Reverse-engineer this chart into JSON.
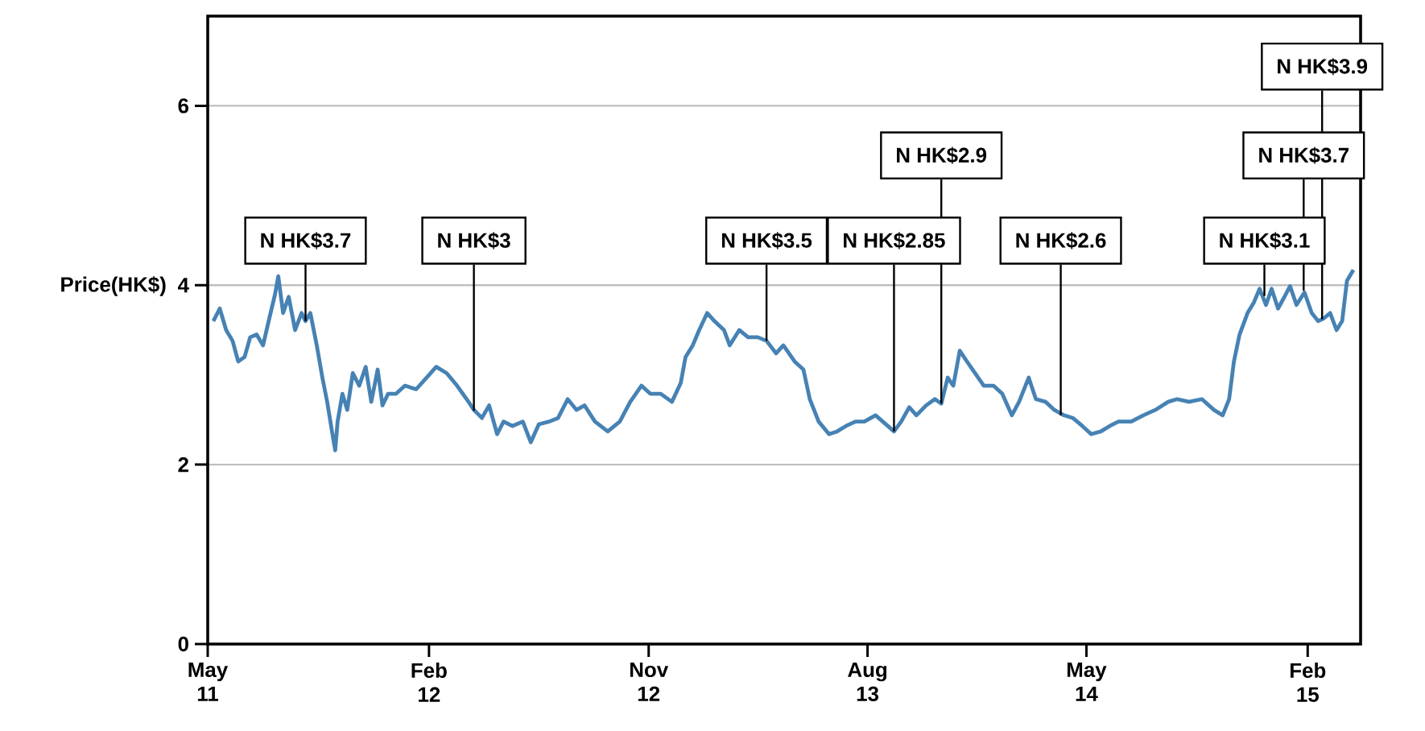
{
  "chart_data": {
    "type": "line",
    "ylabel": "Price(HK$)",
    "color": "#4682b4",
    "xlim": [
      "2011-05-01",
      "2015-04-08"
    ],
    "xticks": [
      {
        "value": "2011-05-01",
        "label": "May 11"
      },
      {
        "value": "2012-02-01",
        "label": "Feb 12"
      },
      {
        "value": "2012-11-01",
        "label": "Nov 12"
      },
      {
        "value": "2013-08-01",
        "label": "Aug 13"
      },
      {
        "value": "2014-05-01",
        "label": "May 14"
      },
      {
        "value": "2015-02-01",
        "label": "Feb 15"
      }
    ],
    "ylim": [
      0,
      7
    ],
    "yticks": [
      0,
      2,
      4,
      6
    ],
    "grid": "y",
    "x": [
      "2011-05-08",
      "2011-05-16",
      "2011-05-24",
      "2011-06-01",
      "2011-06-08",
      "2011-06-16",
      "2011-06-23",
      "2011-07-01",
      "2011-07-09",
      "2011-07-16",
      "2011-07-24",
      "2011-07-28",
      "2011-08-03",
      "2011-08-10",
      "2011-08-18",
      "2011-08-26",
      "2011-08-31",
      "2011-09-06",
      "2011-09-14",
      "2011-09-21",
      "2011-09-27",
      "2011-10-03",
      "2011-10-07",
      "2011-10-10",
      "2011-10-16",
      "2011-10-22",
      "2011-10-29",
      "2011-11-06",
      "2011-11-14",
      "2011-11-21",
      "2011-11-29",
      "2011-12-05",
      "2011-12-12",
      "2011-12-22",
      "2012-01-02",
      "2012-01-16",
      "2012-01-29",
      "2012-02-10",
      "2012-02-23",
      "2012-03-07",
      "2012-03-19",
      "2012-03-28",
      "2012-04-07",
      "2012-04-16",
      "2012-04-26",
      "2012-05-04",
      "2012-05-15",
      "2012-05-28",
      "2012-06-07",
      "2012-06-17",
      "2012-06-30",
      "2012-07-11",
      "2012-07-23",
      "2012-08-03",
      "2012-08-13",
      "2012-08-26",
      "2012-09-11",
      "2012-09-26",
      "2012-10-09",
      "2012-10-23",
      "2012-11-03",
      "2012-11-16",
      "2012-11-30",
      "2012-12-11",
      "2012-12-17",
      "2012-12-26",
      "2013-01-03",
      "2013-01-13",
      "2013-01-22",
      "2013-02-03",
      "2013-02-10",
      "2013-02-22",
      "2013-03-05",
      "2013-03-17",
      "2013-03-28",
      "2013-04-09",
      "2013-04-18",
      "2013-05-02",
      "2013-05-13",
      "2013-05-21",
      "2013-06-01",
      "2013-06-14",
      "2013-06-24",
      "2013-07-05",
      "2013-07-17",
      "2013-07-28",
      "2013-08-11",
      "2013-08-20",
      "2013-09-03",
      "2013-09-12",
      "2013-09-22",
      "2013-10-01",
      "2013-10-13",
      "2013-10-24",
      "2013-11-01",
      "2013-11-09",
      "2013-11-16",
      "2013-11-24",
      "2013-12-03",
      "2013-12-13",
      "2013-12-24",
      "2014-01-05",
      "2014-01-16",
      "2014-01-28",
      "2014-02-06",
      "2014-02-18",
      "2014-02-27",
      "2014-03-11",
      "2014-03-22",
      "2014-04-03",
      "2014-04-14",
      "2014-04-26",
      "2014-05-07",
      "2014-05-19",
      "2014-05-30",
      "2014-06-10",
      "2014-06-26",
      "2014-07-11",
      "2014-07-26",
      "2014-08-11",
      "2014-08-22",
      "2014-09-06",
      "2014-09-22",
      "2014-10-07",
      "2014-10-18",
      "2014-10-26",
      "2014-11-01",
      "2014-11-08",
      "2014-11-18",
      "2014-11-26",
      "2014-12-03",
      "2014-12-11",
      "2014-12-18",
      "2014-12-26",
      "2015-01-03",
      "2015-01-10",
      "2015-01-18",
      "2015-01-28",
      "2015-02-06",
      "2015-02-14",
      "2015-02-21",
      "2015-03-01",
      "2015-03-09",
      "2015-03-16",
      "2015-03-22",
      "2015-03-30"
    ],
    "values": [
      3.6,
      3.74,
      3.5,
      3.38,
      3.15,
      3.2,
      3.42,
      3.45,
      3.33,
      3.6,
      3.9,
      4.1,
      3.69,
      3.87,
      3.5,
      3.69,
      3.6,
      3.69,
      3.33,
      2.97,
      2.7,
      2.37,
      2.16,
      2.48,
      2.79,
      2.61,
      3.02,
      2.88,
      3.09,
      2.7,
      3.06,
      2.66,
      2.79,
      2.79,
      2.88,
      2.84,
      2.97,
      3.09,
      3.02,
      2.88,
      2.73,
      2.61,
      2.52,
      2.66,
      2.34,
      2.48,
      2.43,
      2.48,
      2.25,
      2.45,
      2.48,
      2.52,
      2.73,
      2.61,
      2.66,
      2.48,
      2.37,
      2.48,
      2.7,
      2.88,
      2.79,
      2.79,
      2.7,
      2.91,
      3.2,
      3.33,
      3.5,
      3.69,
      3.6,
      3.5,
      3.33,
      3.5,
      3.42,
      3.42,
      3.38,
      3.24,
      3.33,
      3.15,
      3.06,
      2.73,
      2.48,
      2.34,
      2.37,
      2.43,
      2.48,
      2.48,
      2.55,
      2.48,
      2.37,
      2.48,
      2.64,
      2.55,
      2.66,
      2.73,
      2.68,
      2.97,
      2.88,
      3.27,
      3.15,
      3.02,
      2.88,
      2.88,
      2.79,
      2.55,
      2.7,
      2.97,
      2.73,
      2.7,
      2.61,
      2.55,
      2.52,
      2.43,
      2.34,
      2.37,
      2.43,
      2.48,
      2.48,
      2.55,
      2.61,
      2.7,
      2.73,
      2.7,
      2.73,
      2.61,
      2.55,
      2.73,
      3.15,
      3.45,
      3.69,
      3.81,
      3.96,
      3.78,
      3.96,
      3.74,
      3.87,
      3.99,
      3.78,
      3.92,
      3.69,
      3.6,
      3.63,
      3.69,
      3.5,
      3.6,
      4.05,
      4.17
    ],
    "annotations": [
      {
        "text": "N HK$3.7",
        "x": "2011-08-31",
        "y": 3.6
      },
      {
        "text": "N HK$3",
        "x": "2012-03-28",
        "y": 2.6
      },
      {
        "text": "N HK$3.5",
        "x": "2013-03-28",
        "y": 3.38
      },
      {
        "text": "N HK$2.85",
        "x": "2013-09-03",
        "y": 2.37
      },
      {
        "text": "N HK$2.9",
        "x": "2013-11-01",
        "y": 2.68
      },
      {
        "text": "N HK$2.6",
        "x": "2014-03-30",
        "y": 2.55
      },
      {
        "text": "N HK$3.1",
        "x": "2014-12-09",
        "y": 3.88
      },
      {
        "text": "N HK$3.7",
        "x": "2015-01-27",
        "y": 3.94
      },
      {
        "text": "N HK$3.9",
        "x": "2015-02-19",
        "y": 3.62
      }
    ]
  }
}
